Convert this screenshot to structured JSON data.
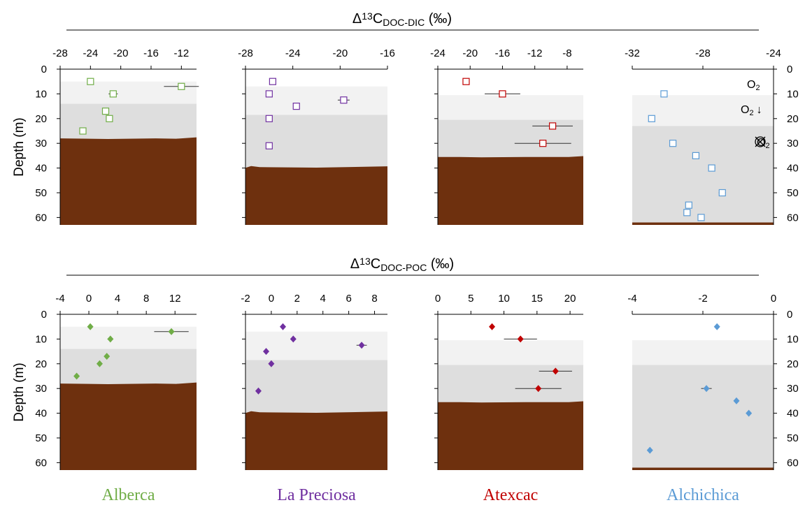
{
  "figure": {
    "top_title_main": "Δ",
    "top_title_sup": "13",
    "top_title_base": "C",
    "top_title_sub": "DOC-DIC",
    "top_title_unit": " (‰)",
    "bottom_title_main": "Δ",
    "bottom_title_sup": "13",
    "bottom_title_base": "C",
    "bottom_title_sub": "DOC-POC",
    "bottom_title_unit": " (‰)",
    "ylabel": "Depth (m)",
    "oxygen_labels": {
      "o2": "O",
      "o2_sub": "2",
      "o2_down_arrow": "↓"
    },
    "lake_names": [
      "Alberca",
      "La Preciosa",
      "Atexcac",
      "Alchichica"
    ]
  },
  "colors": {
    "Alberca": "#70ad47",
    "La Preciosa": "#7030a0",
    "Atexcac": "#c00000",
    "Alchichica": "#5b9bd5",
    "sediment": "#6e300e",
    "zone_light": "#f2f2f2",
    "zone_dark": "#dedede"
  },
  "chart_data": [
    {
      "type": "scatter",
      "row": "DOC-DIC",
      "lake": "Alberca",
      "marker": "open-square",
      "xlim": [
        -28,
        -10
      ],
      "xticks": [
        -28,
        -24,
        -20,
        -16,
        -12
      ],
      "ylim": [
        0,
        63
      ],
      "yticks": [
        0,
        10,
        20,
        30,
        40,
        50,
        60
      ],
      "zones": {
        "light_top": 5,
        "light_bottom": 14,
        "bottom_depth": 28
      },
      "points": [
        {
          "x": -24,
          "y": 5,
          "err": 0
        },
        {
          "x": -21,
          "y": 10,
          "err": 0.6
        },
        {
          "x": -22,
          "y": 17,
          "err": 0
        },
        {
          "x": -21.5,
          "y": 20,
          "err": 0
        },
        {
          "x": -25,
          "y": 25,
          "err": 0
        },
        {
          "x": -12,
          "y": 7,
          "err": 2.3
        }
      ]
    },
    {
      "type": "scatter",
      "row": "DOC-DIC",
      "lake": "La Preciosa",
      "marker": "open-square",
      "xlim": [
        -28,
        -16
      ],
      "xticks": [
        -28,
        -24,
        -20,
        -16
      ],
      "ylim": [
        0,
        63
      ],
      "yticks": [
        0,
        10,
        20,
        30,
        40,
        50,
        60
      ],
      "zones": {
        "light_top": 7,
        "light_bottom": 18.5,
        "bottom_depth": 39.5
      },
      "points": [
        {
          "x": -25.7,
          "y": 5,
          "err": 0
        },
        {
          "x": -26,
          "y": 10,
          "err": 0
        },
        {
          "x": -23.7,
          "y": 15,
          "err": 0
        },
        {
          "x": -19.7,
          "y": 12.5,
          "err": 0.5
        },
        {
          "x": -26,
          "y": 20,
          "err": 0
        },
        {
          "x": -26,
          "y": 31,
          "err": 0
        }
      ]
    },
    {
      "type": "scatter",
      "row": "DOC-DIC",
      "lake": "Atexcac",
      "marker": "open-square",
      "xlim": [
        -24,
        -6
      ],
      "xticks": [
        -24,
        -20,
        -16,
        -12,
        -8
      ],
      "ylim": [
        0,
        63
      ],
      "yticks": [
        0,
        10,
        20,
        30,
        40,
        50,
        60
      ],
      "zones": {
        "light_top": 10.5,
        "light_bottom": 20.5,
        "bottom_depth": 35.5
      },
      "points": [
        {
          "x": -20.5,
          "y": 5,
          "err": 0
        },
        {
          "x": -16,
          "y": 10,
          "err": 2.2
        },
        {
          "x": -9.8,
          "y": 23,
          "err": 2.5
        },
        {
          "x": -11,
          "y": 30,
          "err": 3.5
        }
      ]
    },
    {
      "type": "scatter",
      "row": "DOC-DIC",
      "lake": "Alchichica",
      "marker": "open-square",
      "xlim": [
        -32,
        -24
      ],
      "xticks": [
        -32,
        -28,
        -24
      ],
      "ylim": [
        0,
        63
      ],
      "yticks": [
        0,
        10,
        20,
        30,
        40,
        50,
        60
      ],
      "zones": {
        "light_top": 10.5,
        "light_bottom": 23,
        "bottom_depth": 62
      },
      "points": [
        {
          "x": -30.2,
          "y": 10,
          "err": 0.15
        },
        {
          "x": -30.9,
          "y": 20,
          "err": 0
        },
        {
          "x": -29.7,
          "y": 30,
          "err": 0
        },
        {
          "x": -28.4,
          "y": 35,
          "err": 0
        },
        {
          "x": -27.5,
          "y": 40,
          "err": 0.2
        },
        {
          "x": -26.9,
          "y": 50,
          "err": 0.2
        },
        {
          "x": -28.8,
          "y": 55,
          "err": 0
        },
        {
          "x": -28.9,
          "y": 58,
          "err": 0
        },
        {
          "x": -28.1,
          "y": 60,
          "err": 0
        }
      ]
    },
    {
      "type": "scatter",
      "row": "DOC-POC",
      "lake": "Alberca",
      "marker": "filled-diamond",
      "xlim": [
        -4,
        15
      ],
      "xticks": [
        -4,
        0,
        4,
        8,
        12
      ],
      "ylim": [
        0,
        63
      ],
      "yticks": [
        0,
        10,
        20,
        30,
        40,
        50,
        60
      ],
      "zones": {
        "light_top": 5,
        "light_bottom": 14,
        "bottom_depth": 28
      },
      "points": [
        {
          "x": 0.2,
          "y": 5,
          "err": 0
        },
        {
          "x": 3,
          "y": 10,
          "err": 0.4
        },
        {
          "x": 2.5,
          "y": 17,
          "err": 0
        },
        {
          "x": 1.5,
          "y": 20,
          "err": 0
        },
        {
          "x": -1.7,
          "y": 25,
          "err": 0
        },
        {
          "x": 11.5,
          "y": 7,
          "err": 2.4
        }
      ]
    },
    {
      "type": "scatter",
      "row": "DOC-POC",
      "lake": "La Preciosa",
      "marker": "filled-diamond",
      "xlim": [
        -2,
        9
      ],
      "xticks": [
        -2,
        0,
        2,
        4,
        6,
        8
      ],
      "ylim": [
        0,
        63
      ],
      "yticks": [
        0,
        10,
        20,
        30,
        40,
        50,
        60
      ],
      "zones": {
        "light_top": 7,
        "light_bottom": 18.5,
        "bottom_depth": 39.5
      },
      "points": [
        {
          "x": 0.9,
          "y": 5,
          "err": 0
        },
        {
          "x": 1.7,
          "y": 10,
          "err": 0
        },
        {
          "x": 7,
          "y": 12.5,
          "err": 0.4
        },
        {
          "x": -0.4,
          "y": 15,
          "err": 0
        },
        {
          "x": 0,
          "y": 20,
          "err": 0
        },
        {
          "x": -1,
          "y": 31,
          "err": 0
        }
      ]
    },
    {
      "type": "scatter",
      "row": "DOC-POC",
      "lake": "Atexcac",
      "marker": "filled-diamond",
      "xlim": [
        0,
        22
      ],
      "xticks": [
        0,
        5,
        10,
        15,
        20
      ],
      "ylim": [
        0,
        63
      ],
      "yticks": [
        0,
        10,
        20,
        30,
        40,
        50,
        60
      ],
      "zones": {
        "light_top": 10.5,
        "light_bottom": 20.5,
        "bottom_depth": 35.5
      },
      "points": [
        {
          "x": 8.2,
          "y": 5,
          "err": 0
        },
        {
          "x": 12.5,
          "y": 10,
          "err": 2.5
        },
        {
          "x": 17.8,
          "y": 23,
          "err": 2.5
        },
        {
          "x": 15.2,
          "y": 30,
          "err": 3.5
        }
      ]
    },
    {
      "type": "scatter",
      "row": "DOC-POC",
      "lake": "Alchichica",
      "marker": "filled-diamond",
      "xlim": [
        -4,
        0
      ],
      "xticks": [
        -4,
        -2,
        0
      ],
      "ylim": [
        0,
        63
      ],
      "yticks": [
        0,
        10,
        20,
        30,
        40,
        50,
        60
      ],
      "zones": {
        "light_top": 10.5,
        "light_bottom": 20.5,
        "bottom_depth": 62
      },
      "points": [
        {
          "x": -1.6,
          "y": 5,
          "err": 0
        },
        {
          "x": -1.9,
          "y": 30,
          "err": 0.15
        },
        {
          "x": -1.05,
          "y": 35,
          "err": 0
        },
        {
          "x": -0.7,
          "y": 40,
          "err": 0
        },
        {
          "x": -3.5,
          "y": 55,
          "err": 0
        }
      ]
    }
  ]
}
